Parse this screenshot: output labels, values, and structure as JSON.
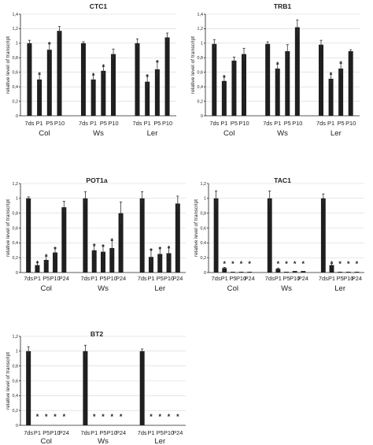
{
  "chart_data": [
    {
      "type": "bar",
      "title": "CTC1",
      "ylabel": "relative level of transcript",
      "ylim": [
        0,
        1.4
      ],
      "yticks": [
        "0",
        "0,2",
        "0,4",
        "0,6",
        "0,8",
        "1",
        "1,2",
        "1,4"
      ],
      "grid": true,
      "groups": [
        {
          "name": "Col",
          "categories": [
            "7ds",
            "P1",
            "P5",
            "P10"
          ],
          "values": [
            1.0,
            0.5,
            0.91,
            1.17
          ],
          "errors": [
            0.04,
            0.07,
            0.08,
            0.06
          ],
          "significant": [
            false,
            true,
            true,
            false
          ]
        },
        {
          "name": "Ws",
          "categories": [
            "7ds",
            "P1",
            "P5",
            "P10"
          ],
          "values": [
            1.0,
            0.5,
            0.62,
            0.85
          ],
          "errors": [
            0.02,
            0.06,
            0.06,
            0.07
          ],
          "significant": [
            false,
            true,
            true,
            false
          ]
        },
        {
          "name": "Ler",
          "categories": [
            "7ds",
            "P1",
            "P5",
            "P10"
          ],
          "values": [
            1.0,
            0.47,
            0.64,
            1.08
          ],
          "errors": [
            0.06,
            0.07,
            0.1,
            0.06
          ],
          "significant": [
            false,
            true,
            true,
            false
          ]
        }
      ]
    },
    {
      "type": "bar",
      "title": "TRB1",
      "ylabel": "relative level of transcript",
      "ylim": [
        0,
        1.4
      ],
      "yticks": [
        "0",
        "0,2",
        "0,4",
        "0,6",
        "0,8",
        "1",
        "1,2",
        "1,4"
      ],
      "grid": true,
      "groups": [
        {
          "name": "Col",
          "categories": [
            "7ds",
            "P1",
            "P5",
            "P10"
          ],
          "values": [
            0.99,
            0.48,
            0.76,
            0.85
          ],
          "errors": [
            0.06,
            0.05,
            0.05,
            0.08
          ],
          "significant": [
            false,
            true,
            false,
            false
          ]
        },
        {
          "name": "Ws",
          "categories": [
            "7ds",
            "P1",
            "P5",
            "P10"
          ],
          "values": [
            0.99,
            0.65,
            0.89,
            1.22
          ],
          "errors": [
            0.03,
            0.06,
            0.09,
            0.1
          ],
          "significant": [
            false,
            true,
            false,
            false
          ]
        },
        {
          "name": "Ler",
          "categories": [
            "7ds",
            "P1",
            "P5",
            "P10"
          ],
          "values": [
            0.98,
            0.51,
            0.65,
            0.89
          ],
          "errors": [
            0.06,
            0.06,
            0.07,
            0.02
          ],
          "significant": [
            false,
            true,
            true,
            false
          ]
        }
      ]
    },
    {
      "type": "bar",
      "title": "POT1a",
      "ylabel": "relative level of transcript",
      "ylim": [
        0,
        1.2
      ],
      "yticks": [
        "0",
        "0,2",
        "0,4",
        "0,6",
        "0,8",
        "1",
        "1,2"
      ],
      "grid": true,
      "groups": [
        {
          "name": "Col",
          "categories": [
            "7ds",
            "P1",
            "P5",
            "P10",
            "P24"
          ],
          "values": [
            1.0,
            0.1,
            0.17,
            0.27,
            0.88
          ],
          "errors": [
            0.02,
            0.03,
            0.05,
            0.05,
            0.08
          ],
          "significant": [
            false,
            true,
            true,
            true,
            false
          ]
        },
        {
          "name": "Ws",
          "categories": [
            "7ds",
            "P1",
            "P5",
            "P10",
            "P24"
          ],
          "values": [
            1.0,
            0.3,
            0.28,
            0.33,
            0.8
          ],
          "errors": [
            0.09,
            0.06,
            0.07,
            0.1,
            0.15
          ],
          "significant": [
            false,
            true,
            true,
            true,
            false
          ]
        },
        {
          "name": "Ler",
          "categories": [
            "7ds",
            "P1",
            "P5",
            "P10",
            "P24"
          ],
          "values": [
            1.0,
            0.21,
            0.25,
            0.26,
            0.93
          ],
          "errors": [
            0.09,
            0.09,
            0.07,
            0.07,
            0.1
          ],
          "significant": [
            false,
            true,
            true,
            true,
            false
          ]
        }
      ]
    },
    {
      "type": "bar",
      "title": "TAC1",
      "ylabel": "relative level of transcript",
      "ylim": [
        0,
        1.2
      ],
      "yticks": [
        "0",
        "0,2",
        "0,4",
        "0,6",
        "0,8",
        "1",
        "1,2"
      ],
      "grid": true,
      "groups": [
        {
          "name": "Col",
          "categories": [
            "7ds",
            "P1",
            "P5",
            "P10",
            "P24"
          ],
          "values": [
            1.0,
            0.06,
            0.01,
            0.01,
            0.01
          ],
          "errors": [
            0.1,
            0.01,
            0.0,
            0.0,
            0.0
          ],
          "significant": [
            false,
            true,
            true,
            true,
            true
          ]
        },
        {
          "name": "Ws",
          "categories": [
            "7ds",
            "P1",
            "P5",
            "P10",
            "P24"
          ],
          "values": [
            1.0,
            0.05,
            0.01,
            0.02,
            0.02
          ],
          "errors": [
            0.1,
            0.01,
            0.0,
            0.0,
            0.0
          ],
          "significant": [
            false,
            true,
            true,
            true,
            true
          ]
        },
        {
          "name": "Ler",
          "categories": [
            "7ds",
            "P1",
            "P5",
            "P10",
            "P24"
          ],
          "values": [
            1.0,
            0.1,
            0.01,
            0.01,
            0.01
          ],
          "errors": [
            0.06,
            0.02,
            0.0,
            0.0,
            0.0
          ],
          "significant": [
            false,
            true,
            true,
            true,
            true
          ]
        }
      ]
    },
    {
      "type": "bar",
      "title": "BT2",
      "ylabel": "relative level of transcript",
      "ylim": [
        0,
        1.2
      ],
      "yticks": [
        "0",
        "0,2",
        "0,4",
        "0,6",
        "0,8",
        "1",
        "1,2"
      ],
      "grid": true,
      "groups": [
        {
          "name": "Col",
          "categories": [
            "7ds",
            "P1",
            "P5",
            "P10",
            "P24"
          ],
          "values": [
            1.0,
            0.0,
            0.0,
            0.0,
            0.0
          ],
          "errors": [
            0.06,
            0.0,
            0.0,
            0.0,
            0.0
          ],
          "significant": [
            false,
            true,
            true,
            true,
            true
          ]
        },
        {
          "name": "Ws",
          "categories": [
            "7ds",
            "P1",
            "P5",
            "P10",
            "P24"
          ],
          "values": [
            1.0,
            0.0,
            0.0,
            0.0,
            0.0
          ],
          "errors": [
            0.08,
            0.0,
            0.0,
            0.0,
            0.0
          ],
          "significant": [
            false,
            true,
            true,
            true,
            true
          ]
        },
        {
          "name": "Ler",
          "categories": [
            "7ds",
            "P1",
            "P5",
            "P10",
            "P24"
          ],
          "values": [
            1.0,
            0.0,
            0.0,
            0.0,
            0.0
          ],
          "errors": [
            0.03,
            0.0,
            0.0,
            0.0,
            0.0
          ],
          "significant": [
            false,
            true,
            true,
            true,
            true
          ]
        }
      ]
    }
  ],
  "significance_marker": "*",
  "colors": {
    "bar": "#1f1f1f",
    "grid": "#d6d6d6",
    "axis": "#222222"
  }
}
